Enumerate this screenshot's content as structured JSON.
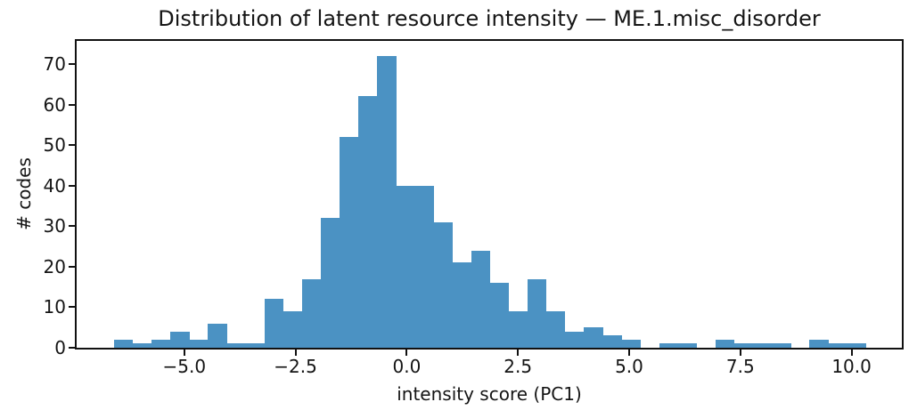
{
  "chart_data": {
    "type": "bar",
    "subtype": "histogram",
    "title": "Distribution of latent resource intensity — ME.1.misc_disorder",
    "xlabel": "intensity score (PC1)",
    "ylabel": "# codes",
    "bin_start": -6.58,
    "bin_width": 0.4225,
    "counts": [
      2,
      1,
      2,
      4,
      2,
      6,
      1,
      1,
      12,
      9,
      17,
      32,
      52,
      62,
      72,
      40,
      40,
      31,
      21,
      24,
      16,
      9,
      17,
      9,
      4,
      5,
      3,
      2,
      0,
      1,
      1,
      0,
      2,
      1,
      1,
      1,
      0,
      2,
      1,
      1
    ],
    "total_count": 507,
    "x_ticks": [
      -5.0,
      -2.5,
      0.0,
      2.5,
      5.0,
      7.5,
      10.0
    ],
    "x_tick_labels": [
      "−5.0",
      "−2.5",
      "0.0",
      "2.5",
      "5.0",
      "7.5",
      "10.0"
    ],
    "y_ticks": [
      0,
      10,
      20,
      30,
      40,
      50,
      60,
      70
    ],
    "y_tick_labels": [
      "0",
      "10",
      "20",
      "30",
      "40",
      "50",
      "60",
      "70"
    ],
    "xlim": [
      -7.42,
      11.13
    ],
    "ylim": [
      0,
      75.7
    ],
    "bar_color": "#4B92C3",
    "axis_color": "#111111",
    "grid": false,
    "legend_position": "none"
  }
}
